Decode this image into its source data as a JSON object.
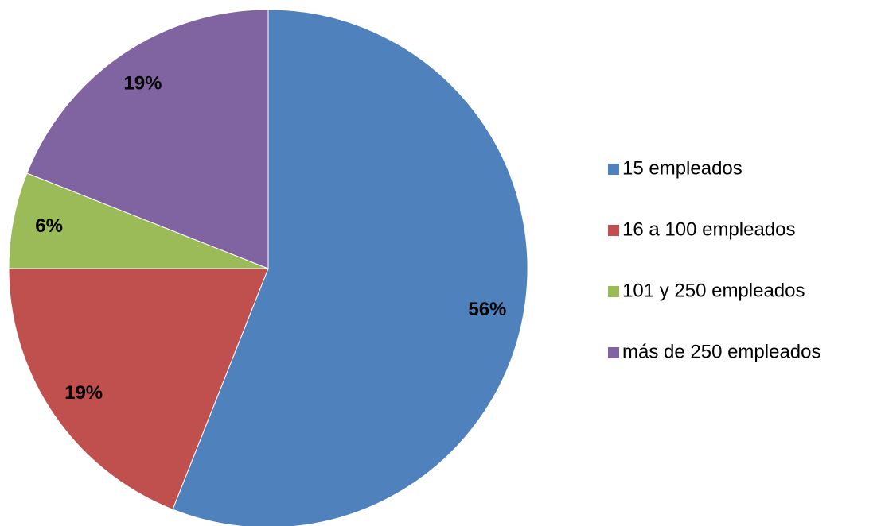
{
  "chart_data": {
    "type": "pie",
    "categories": [
      "15 empleados",
      "16 a 100 empleados",
      "101 y 250 empleados",
      "más de 250 empleados"
    ],
    "values": [
      56,
      19,
      6,
      19
    ],
    "value_labels": [
      "56%",
      "19%",
      "6%",
      "19%"
    ],
    "colors": [
      "#4f81bd",
      "#c0504d",
      "#9bbb59",
      "#8064a2"
    ],
    "legend": "right"
  }
}
